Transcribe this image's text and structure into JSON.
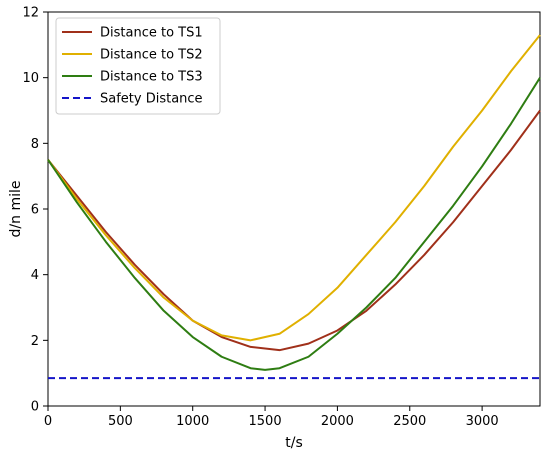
{
  "chart_data": {
    "type": "line",
    "xlabel": "t/s",
    "ylabel": "d/n mile",
    "xlim": [
      0,
      3400
    ],
    "ylim": [
      0,
      12
    ],
    "x_ticks": [
      0,
      500,
      1000,
      1500,
      2000,
      2500,
      3000
    ],
    "y_ticks": [
      0,
      2,
      4,
      6,
      8,
      10,
      12
    ],
    "grid": false,
    "legend_position": "top-left",
    "series": [
      {
        "name": "Distance to TS1",
        "color": "#a0301a",
        "style": "solid",
        "x": [
          0,
          200,
          400,
          600,
          800,
          1000,
          1200,
          1400,
          1600,
          1800,
          2000,
          2200,
          2400,
          2600,
          2800,
          3000,
          3200,
          3400
        ],
        "y": [
          7.5,
          6.4,
          5.3,
          4.3,
          3.4,
          2.6,
          2.1,
          1.8,
          1.7,
          1.9,
          2.3,
          2.9,
          3.7,
          4.6,
          5.6,
          6.7,
          7.8,
          9.0
        ]
      },
      {
        "name": "Distance to TS2",
        "color": "#e0b000",
        "style": "solid",
        "x": [
          0,
          200,
          400,
          600,
          800,
          1000,
          1200,
          1400,
          1600,
          1800,
          2000,
          2200,
          2400,
          2600,
          2800,
          3000,
          3200,
          3400
        ],
        "y": [
          7.5,
          6.3,
          5.2,
          4.2,
          3.3,
          2.6,
          2.15,
          2.0,
          2.2,
          2.8,
          3.6,
          4.6,
          5.6,
          6.7,
          7.9,
          9.0,
          10.2,
          11.3
        ]
      },
      {
        "name": "Distance to TS3",
        "color": "#2e7d12",
        "style": "solid",
        "x": [
          0,
          200,
          400,
          600,
          800,
          1000,
          1200,
          1400,
          1500,
          1600,
          1800,
          2000,
          2200,
          2400,
          2600,
          2800,
          3000,
          3200,
          3400
        ],
        "y": [
          7.5,
          6.2,
          5.0,
          3.9,
          2.9,
          2.1,
          1.5,
          1.15,
          1.1,
          1.15,
          1.5,
          2.2,
          3.0,
          3.9,
          5.0,
          6.1,
          7.3,
          8.6,
          10.0
        ]
      },
      {
        "name": "Safety Distance",
        "color": "#1414c8",
        "style": "dashed",
        "x": [
          0,
          3400
        ],
        "y": [
          0.85,
          0.85
        ]
      }
    ]
  }
}
